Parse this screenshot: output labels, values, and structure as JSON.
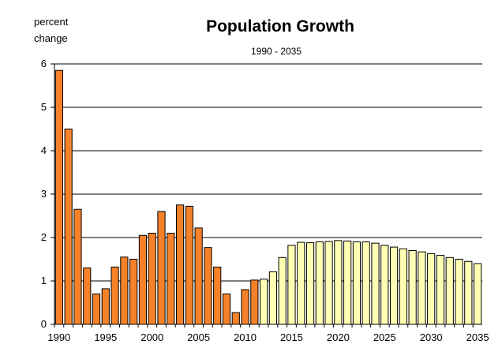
{
  "chart_data": {
    "type": "bar",
    "title": "Population Growth",
    "subtitle": "1990 - 2035",
    "ylabel_line1": "percent",
    "ylabel_line2": "change",
    "xlabel": "",
    "ylim": [
      0,
      6
    ],
    "yticks": [
      0,
      1,
      2,
      3,
      4,
      5,
      6
    ],
    "xticks": [
      1990,
      1995,
      2000,
      2005,
      2010,
      2015,
      2020,
      2025,
      2030,
      2035
    ],
    "grid": true,
    "series": [
      {
        "name": "",
        "color": "#f5822a",
        "x": [
          1990,
          1991,
          1992,
          1993,
          1994,
          1995,
          1996,
          1997,
          1998,
          1999,
          2000,
          2001,
          2002,
          2003,
          2004,
          2005,
          2006,
          2007,
          2008,
          2009,
          2010,
          2011
        ],
        "values": [
          5.85,
          4.5,
          2.65,
          1.3,
          0.7,
          0.82,
          1.32,
          1.55,
          1.5,
          2.05,
          2.1,
          2.6,
          2.1,
          2.75,
          2.72,
          2.22,
          1.77,
          1.32,
          0.7,
          0.27,
          0.8,
          1.02
        ]
      },
      {
        "name": "",
        "color": "#ffffb3",
        "x": [
          2012,
          2013,
          2014,
          2015,
          2016,
          2017,
          2018,
          2019,
          2020,
          2021,
          2022,
          2023,
          2024,
          2025,
          2026,
          2027,
          2028,
          2029,
          2030,
          2031,
          2032,
          2033,
          2034,
          2035
        ],
        "values": [
          1.04,
          1.21,
          1.54,
          1.82,
          1.89,
          1.88,
          1.9,
          1.91,
          1.93,
          1.92,
          1.9,
          1.9,
          1.87,
          1.82,
          1.78,
          1.74,
          1.7,
          1.67,
          1.63,
          1.59,
          1.54,
          1.5,
          1.45,
          1.4
        ]
      }
    ]
  }
}
